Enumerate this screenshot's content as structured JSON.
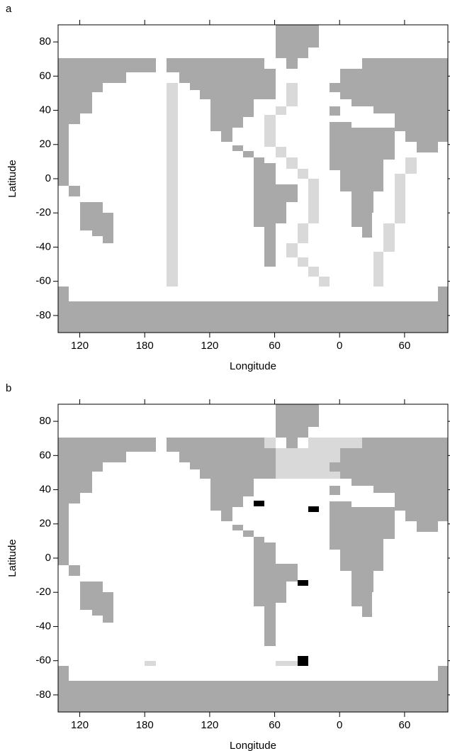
{
  "chart_data": [
    {
      "type": "map",
      "panel_label": "a",
      "x_label": "Longitude",
      "y_label": "Latitude",
      "xlim": [
        100,
        460
      ],
      "ylim": [
        -90,
        90
      ],
      "xticks": [
        {
          "value": 120,
          "label": "120"
        },
        {
          "value": 180,
          "label": "180"
        },
        {
          "value": 240,
          "label": "120"
        },
        {
          "value": 300,
          "label": "60"
        },
        {
          "value": 360,
          "label": "0"
        },
        {
          "value": 420,
          "label": "60"
        }
      ],
      "yticks": [
        -80,
        -60,
        -40,
        -20,
        0,
        20,
        40,
        60,
        80
      ]
    },
    {
      "type": "map",
      "panel_label": "b",
      "x_label": "Longitude",
      "y_label": "Latitude",
      "xlim": [
        100,
        460
      ],
      "ylim": [
        -90,
        90
      ],
      "xticks": [
        {
          "value": 120,
          "label": "120"
        },
        {
          "value": 180,
          "label": "180"
        },
        {
          "value": 240,
          "label": "120"
        },
        {
          "value": 300,
          "label": "60"
        },
        {
          "value": 360,
          "label": "0"
        },
        {
          "value": 420,
          "label": "60"
        }
      ],
      "yticks": [
        -80,
        -60,
        -40,
        -20,
        0,
        20,
        40,
        60,
        80
      ]
    }
  ]
}
